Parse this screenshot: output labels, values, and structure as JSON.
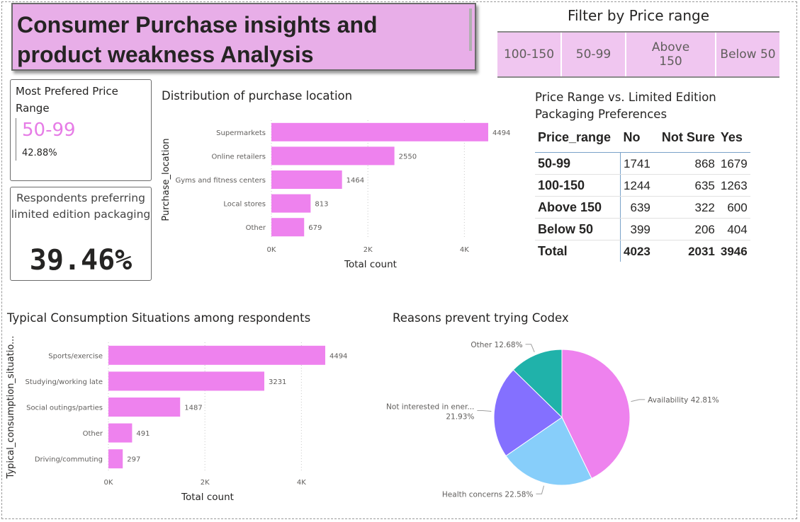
{
  "header": {
    "title": "Consumer Purchase insights and product weakness Analysis"
  },
  "filter": {
    "title": "Filter by Price range",
    "options": [
      "100-150",
      "50-99",
      "Above 150",
      "Below 50"
    ]
  },
  "kpi_price": {
    "label": "Most Prefered Price Range",
    "value": "50-99",
    "percent": "42.88%"
  },
  "kpi_limited": {
    "label": "Respondents preferring limited edition packaging",
    "value": "39.46%"
  },
  "chart_location": {
    "title": "Distribution of purchase location",
    "xlabel": "Total count",
    "ylabel": "Purchase_location",
    "ticks": [
      "0K",
      "2K",
      "4K"
    ],
    "color": "#ee82ee"
  },
  "chart_consumption": {
    "title": "Typical Consumption Situations among respondents",
    "xlabel": "Total count",
    "ylabel": "Typical_consumption_situatio...",
    "ticks": [
      "0K",
      "2K",
      "4K"
    ],
    "color": "#ee82ee"
  },
  "chart_reasons": {
    "title": "Reasons prevent trying Codex"
  },
  "matrix": {
    "title": "Price Range vs. Limited Edition Packaging Preferences",
    "headers": [
      "Price_range",
      "No",
      "Not Sure",
      "Yes"
    ],
    "rows": [
      [
        "50-99",
        "1741",
        "868",
        "1679"
      ],
      [
        "100-150",
        "1244",
        "635",
        "1263"
      ],
      [
        "Above 150",
        "639",
        "322",
        "600"
      ],
      [
        "Below 50",
        "399",
        "206",
        "404"
      ]
    ],
    "total": [
      "Total",
      "4023",
      "2031",
      "3946"
    ]
  },
  "chart_data": [
    {
      "type": "bar",
      "orientation": "horizontal",
      "title": "Distribution of purchase location",
      "xlabel": "Total count",
      "ylabel": "Purchase_location",
      "categories": [
        "Supermarkets",
        "Online retailers",
        "Gyms and fitness centers",
        "Local stores",
        "Other"
      ],
      "values": [
        4494,
        2550,
        1464,
        813,
        679
      ],
      "data_labels": [
        "4494",
        "2550",
        "1464",
        "813",
        "679"
      ],
      "xlim": [
        0,
        4700
      ],
      "xticks": [
        0,
        2000,
        4000
      ],
      "grid": true,
      "color": "#ee82ee"
    },
    {
      "type": "bar",
      "orientation": "horizontal",
      "title": "Typical Consumption Situations among respondents",
      "xlabel": "Total count",
      "ylabel": "Typical_consumption_situatio...",
      "categories": [
        "Sports/exercise",
        "Studying/working late",
        "Social outings/parties",
        "Other",
        "Driving/commuting"
      ],
      "values": [
        4494,
        3231,
        1487,
        491,
        297
      ],
      "data_labels": [
        "4494",
        "3231",
        "1487",
        "491",
        "297"
      ],
      "xlim": [
        0,
        4700
      ],
      "xticks": [
        0,
        2000,
        4000
      ],
      "grid": true,
      "color": "#ee82ee"
    },
    {
      "type": "pie",
      "title": "Reasons prevent trying Codex",
      "slices": [
        {
          "label": "Availability",
          "value": 42.81,
          "text": "Availability 42.81%",
          "color": "#ee82ee"
        },
        {
          "label": "Health concerns",
          "value": 22.58,
          "text": "Health concerns 22.58%",
          "color": "#87cefa"
        },
        {
          "label": "Not interested in ener...",
          "value": 21.93,
          "text": "Not interested in ener...",
          "text2": "21.93%",
          "color": "#8470ff"
        },
        {
          "label": "Other",
          "value": 12.68,
          "text": "Other 12.68%",
          "color": "#20b2aa"
        }
      ]
    }
  ]
}
